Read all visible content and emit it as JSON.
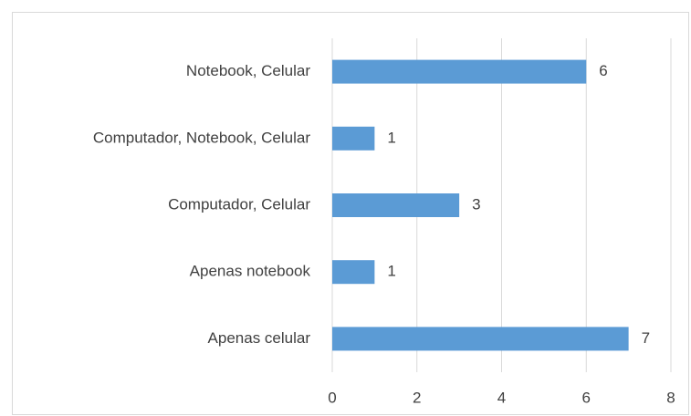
{
  "chart_data": {
    "type": "hbar",
    "categories": [
      "Notebook, Celular",
      "Computador, Notebook, Celular",
      "Computador, Celular",
      "Apenas notebook",
      "Apenas celular"
    ],
    "values": [
      6,
      1,
      3,
      1,
      7
    ],
    "color": "#5b9bd5",
    "xlim": [
      0,
      8
    ],
    "xticks": [
      0,
      2,
      4,
      6,
      8
    ],
    "grid": true,
    "data_labels": true
  }
}
